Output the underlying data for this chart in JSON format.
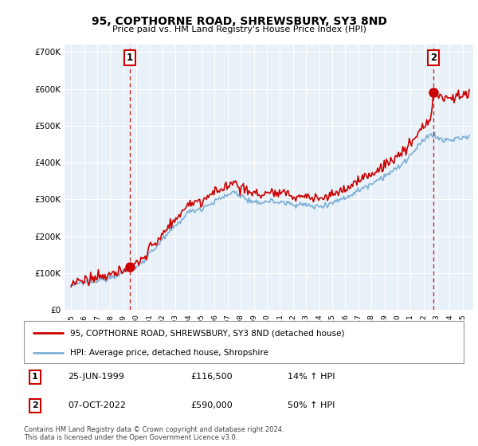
{
  "title": "95, COPTHORNE ROAD, SHREWSBURY, SY3 8ND",
  "subtitle": "Price paid vs. HM Land Registry's House Price Index (HPI)",
  "background_color": "#ffffff",
  "plot_bg_color": "#e8f0f8",
  "grid_color": "#ffffff",
  "ylim": [
    0,
    720000
  ],
  "yticks": [
    0,
    100000,
    200000,
    300000,
    400000,
    500000,
    600000,
    700000
  ],
  "ytick_labels": [
    "£0",
    "£100K",
    "£200K",
    "£300K",
    "£400K",
    "£500K",
    "£600K",
    "£700K"
  ],
  "sale1_year": 1999.49,
  "sale1_price": 116500,
  "sale2_year": 2022.77,
  "sale2_price": 590000,
  "hpi_line_color": "#7eb0d5",
  "price_line_color": "#cc0000",
  "vline_color": "#cc0000",
  "marker_color": "#cc0000",
  "legend_label1": "95, COPTHORNE ROAD, SHREWSBURY, SY3 8ND (detached house)",
  "legend_label2": "HPI: Average price, detached house, Shropshire",
  "table_rows": [
    {
      "num": "1",
      "date": "25-JUN-1999",
      "price": "£116,500",
      "hpi": "14% ↑ HPI"
    },
    {
      "num": "2",
      "date": "07-OCT-2022",
      "price": "£590,000",
      "hpi": "50% ↑ HPI"
    }
  ],
  "footer": "Contains HM Land Registry data © Crown copyright and database right 2024.\nThis data is licensed under the Open Government Licence v3.0.",
  "xlim_left": 1994.5,
  "xlim_right": 2025.8
}
